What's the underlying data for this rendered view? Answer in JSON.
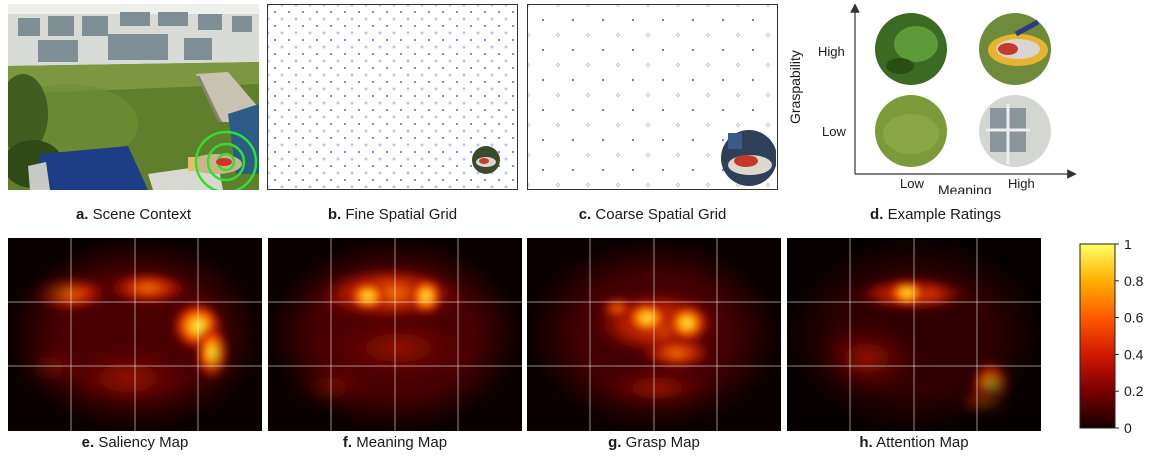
{
  "figure": {
    "panels": [
      {
        "letter": "a.",
        "caption": "Scene Context"
      },
      {
        "letter": "b.",
        "caption": "Fine Spatial Grid"
      },
      {
        "letter": "c.",
        "caption": "Coarse Spatial Grid"
      },
      {
        "letter": "d.",
        "caption": "Example Ratings"
      },
      {
        "letter": "e.",
        "caption": "Saliency Map"
      },
      {
        "letter": "f.",
        "caption": "Meaning Map"
      },
      {
        "letter": "g.",
        "caption": "Grasp Map"
      },
      {
        "letter": "h.",
        "caption": "Attention Map"
      }
    ],
    "ratings_plot": {
      "y_label": "Graspability",
      "x_label": "Meaning",
      "y_ticks": [
        "High",
        "Low"
      ],
      "x_ticks": [
        "Low",
        "High"
      ]
    },
    "colorbar": {
      "ticks": [
        "1",
        "0.8",
        "0.6",
        "0.4",
        "0.2",
        "0"
      ],
      "min": 0,
      "max": 1,
      "colors": [
        "#ffff66",
        "#ffb000",
        "#ff5a00",
        "#d21800",
        "#7a0000",
        "#150000"
      ]
    }
  }
}
